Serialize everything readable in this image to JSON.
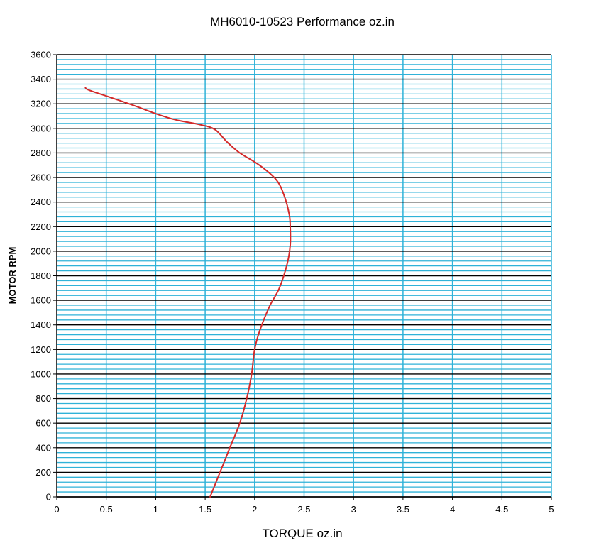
{
  "chart_data": {
    "type": "line",
    "title": "MH6010-10523   Performance oz.in",
    "xlabel": "TORQUE  oz.in",
    "ylabel": "MOTOR RPM",
    "xlim": [
      0,
      5
    ],
    "ylim": [
      0,
      3600
    ],
    "x_ticks": [
      "0",
      "0.5",
      "1",
      "1.5",
      "2",
      "2.5",
      "3",
      "3.5",
      "4",
      "4.5",
      "5"
    ],
    "y_ticks": [
      "0",
      "200",
      "400",
      "600",
      "800",
      "1000",
      "1200",
      "1400",
      "1600",
      "1800",
      "2000",
      "2200",
      "2400",
      "2600",
      "2800",
      "3000",
      "3200",
      "3400",
      "3600"
    ],
    "grid": true,
    "legend": "none",
    "colors": {
      "line": "#d42a2a",
      "minor_grid": "#2fb2d8",
      "vertical_grid": "#2fb2d8",
      "major_grid": "#000000",
      "axis": "#000000"
    },
    "series": [
      {
        "points": [
          [
            0.29,
            3330
          ],
          [
            0.33,
            3310
          ],
          [
            0.55,
            3250
          ],
          [
            0.8,
            3180
          ],
          [
            1.0,
            3120
          ],
          [
            1.2,
            3070
          ],
          [
            1.45,
            3030
          ],
          [
            1.6,
            2990
          ],
          [
            1.72,
            2890
          ],
          [
            1.85,
            2800
          ],
          [
            2.05,
            2700
          ],
          [
            2.22,
            2580
          ],
          [
            2.3,
            2450
          ],
          [
            2.35,
            2300
          ],
          [
            2.36,
            2200
          ],
          [
            2.36,
            2050
          ],
          [
            2.33,
            1900
          ],
          [
            2.25,
            1700
          ],
          [
            2.15,
            1550
          ],
          [
            2.05,
            1350
          ],
          [
            2.0,
            1200
          ],
          [
            1.97,
            1000
          ],
          [
            1.92,
            800
          ],
          [
            1.85,
            600
          ],
          [
            1.75,
            400
          ],
          [
            1.65,
            200
          ],
          [
            1.55,
            0
          ]
        ]
      }
    ]
  }
}
